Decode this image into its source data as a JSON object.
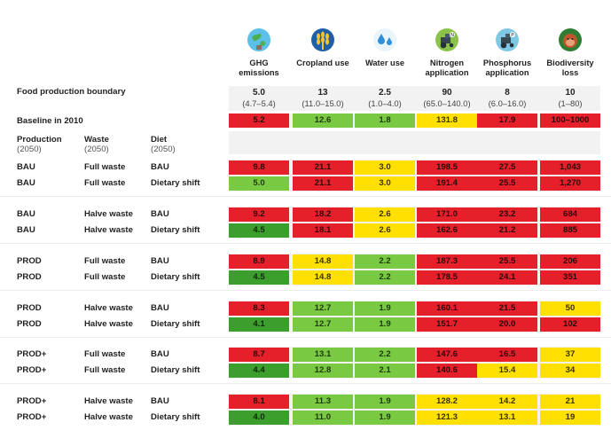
{
  "columns": [
    {
      "key": "ghg",
      "label": [
        "GHG",
        "emissions"
      ],
      "icon": "ghg-globe-icon",
      "bound_value": "5.0",
      "bound_range": "(4.7–5.4)"
    },
    {
      "key": "crop",
      "label": [
        "Cropland use"
      ],
      "icon": "wheat-icon",
      "bound_value": "13",
      "bound_range": "(11.0–15.0)"
    },
    {
      "key": "water",
      "label": [
        "Water use"
      ],
      "icon": "water-drops-icon",
      "bound_value": "2.5",
      "bound_range": "(1.0–4.0)"
    },
    {
      "key": "nitrogen",
      "label": [
        "Nitrogen",
        "application"
      ],
      "icon": "tractor-n-icon",
      "bound_value": "90",
      "bound_range": "(65.0–140.0)"
    },
    {
      "key": "phosphorus",
      "label": [
        "Phosphorus",
        "application"
      ],
      "icon": "tractor-p-icon",
      "bound_value": "8",
      "bound_range": "(6.0–16.0)"
    },
    {
      "key": "biodiversity",
      "label": [
        "Biodiversity",
        "loss"
      ],
      "icon": "orangutan-icon",
      "bound_value": "10",
      "bound_range": "(1–80)"
    }
  ],
  "boundary_label": "Food production boundary",
  "baseline_label": "Baseline in 2010",
  "baseline": [
    {
      "v": "5.2",
      "c": "red"
    },
    {
      "v": "12.6",
      "c": "lgreen"
    },
    {
      "v": "1.8",
      "c": "lgreen"
    },
    {
      "v": "131.8",
      "c": "yellow"
    },
    {
      "v": "17.9",
      "c": "red"
    },
    {
      "v": "100–1000",
      "c": "red"
    }
  ],
  "scenario_headers": [
    {
      "title": "Production",
      "sub": "(2050)"
    },
    {
      "title": "Waste",
      "sub": "(2050)"
    },
    {
      "title": "Diet",
      "sub": "(2050)"
    }
  ],
  "rows": [
    {
      "p": "BAU",
      "w": "Full waste",
      "d": "BAU",
      "cells": [
        {
          "v": "9.8",
          "c": "red"
        },
        {
          "v": "21.1",
          "c": "red"
        },
        {
          "v": "3.0",
          "c": "yellow"
        },
        {
          "v": "198.5",
          "c": "red"
        },
        {
          "v": "27.5",
          "c": "red"
        },
        {
          "v": "1,043",
          "c": "red"
        }
      ]
    },
    {
      "p": "BAU",
      "w": "Full waste",
      "d": "Dietary shift",
      "cells": [
        {
          "v": "5.0",
          "c": "lgreen"
        },
        {
          "v": "21.1",
          "c": "red"
        },
        {
          "v": "3.0",
          "c": "yellow"
        },
        {
          "v": "191.4",
          "c": "red"
        },
        {
          "v": "25.5",
          "c": "red"
        },
        {
          "v": "1,270",
          "c": "red"
        }
      ]
    },
    {
      "p": "BAU",
      "w": "Halve waste",
      "d": "BAU",
      "cells": [
        {
          "v": "9.2",
          "c": "red"
        },
        {
          "v": "18.2",
          "c": "red"
        },
        {
          "v": "2.6",
          "c": "yellow"
        },
        {
          "v": "171.0",
          "c": "red"
        },
        {
          "v": "23.2",
          "c": "red"
        },
        {
          "v": "684",
          "c": "red"
        }
      ]
    },
    {
      "p": "BAU",
      "w": "Halve waste",
      "d": "Dietary shift",
      "cells": [
        {
          "v": "4.5",
          "c": "dgreen"
        },
        {
          "v": "18.1",
          "c": "red"
        },
        {
          "v": "2.6",
          "c": "yellow"
        },
        {
          "v": "162.6",
          "c": "red"
        },
        {
          "v": "21.2",
          "c": "red"
        },
        {
          "v": "885",
          "c": "red"
        }
      ]
    },
    {
      "p": "PROD",
      "w": "Full waste",
      "d": "BAU",
      "cells": [
        {
          "v": "8.9",
          "c": "red"
        },
        {
          "v": "14.8",
          "c": "yellow"
        },
        {
          "v": "2.2",
          "c": "lgreen"
        },
        {
          "v": "187.3",
          "c": "red"
        },
        {
          "v": "25.5",
          "c": "red"
        },
        {
          "v": "206",
          "c": "red"
        }
      ]
    },
    {
      "p": "PROD",
      "w": "Full waste",
      "d": "Dietary shift",
      "cells": [
        {
          "v": "4.5",
          "c": "dgreen"
        },
        {
          "v": "14.8",
          "c": "yellow"
        },
        {
          "v": "2.2",
          "c": "lgreen"
        },
        {
          "v": "178.5",
          "c": "red"
        },
        {
          "v": "24.1",
          "c": "red"
        },
        {
          "v": "351",
          "c": "red"
        }
      ]
    },
    {
      "p": "PROD",
      "w": "Halve waste",
      "d": "BAU",
      "cells": [
        {
          "v": "8.3",
          "c": "red"
        },
        {
          "v": "12.7",
          "c": "lgreen"
        },
        {
          "v": "1.9",
          "c": "lgreen"
        },
        {
          "v": "160.1",
          "c": "red"
        },
        {
          "v": "21.5",
          "c": "red"
        },
        {
          "v": "50",
          "c": "yellow"
        }
      ]
    },
    {
      "p": "PROD",
      "w": "Halve waste",
      "d": "Dietary shift",
      "cells": [
        {
          "v": "4.1",
          "c": "dgreen"
        },
        {
          "v": "12.7",
          "c": "lgreen"
        },
        {
          "v": "1.9",
          "c": "lgreen"
        },
        {
          "v": "151.7",
          "c": "red"
        },
        {
          "v": "20.0",
          "c": "red"
        },
        {
          "v": "102",
          "c": "red"
        }
      ]
    },
    {
      "p": "PROD+",
      "w": "Full waste",
      "d": "BAU",
      "cells": [
        {
          "v": "8.7",
          "c": "red"
        },
        {
          "v": "13.1",
          "c": "lgreen"
        },
        {
          "v": "2.2",
          "c": "lgreen"
        },
        {
          "v": "147.6",
          "c": "red"
        },
        {
          "v": "16.5",
          "c": "red"
        },
        {
          "v": "37",
          "c": "yellow"
        }
      ]
    },
    {
      "p": "PROD+",
      "w": "Full waste",
      "d": "Dietary shift",
      "cells": [
        {
          "v": "4.4",
          "c": "dgreen"
        },
        {
          "v": "12.8",
          "c": "lgreen"
        },
        {
          "v": "2.1",
          "c": "lgreen"
        },
        {
          "v": "140.6",
          "c": "red"
        },
        {
          "v": "15.4",
          "c": "yellow"
        },
        {
          "v": "34",
          "c": "yellow"
        }
      ]
    },
    {
      "p": "PROD+",
      "w": "Halve waste",
      "d": "BAU",
      "cells": [
        {
          "v": "8.1",
          "c": "red"
        },
        {
          "v": "11.3",
          "c": "lgreen"
        },
        {
          "v": "1.9",
          "c": "lgreen"
        },
        {
          "v": "128.2",
          "c": "yellow"
        },
        {
          "v": "14.2",
          "c": "yellow"
        },
        {
          "v": "21",
          "c": "yellow"
        }
      ]
    },
    {
      "p": "PROD+",
      "w": "Halve waste",
      "d": "Dietary shift",
      "cells": [
        {
          "v": "4.0",
          "c": "dgreen"
        },
        {
          "v": "11.0",
          "c": "lgreen"
        },
        {
          "v": "1.9",
          "c": "lgreen"
        },
        {
          "v": "121.3",
          "c": "yellow"
        },
        {
          "v": "13.1",
          "c": "yellow"
        },
        {
          "v": "19",
          "c": "yellow"
        }
      ]
    }
  ],
  "colors": {
    "red": "#e5202a",
    "yellow": "#ffe000",
    "lgreen": "#7ac943",
    "dgreen": "#3c9f2d",
    "band": "#f2f2f2"
  }
}
